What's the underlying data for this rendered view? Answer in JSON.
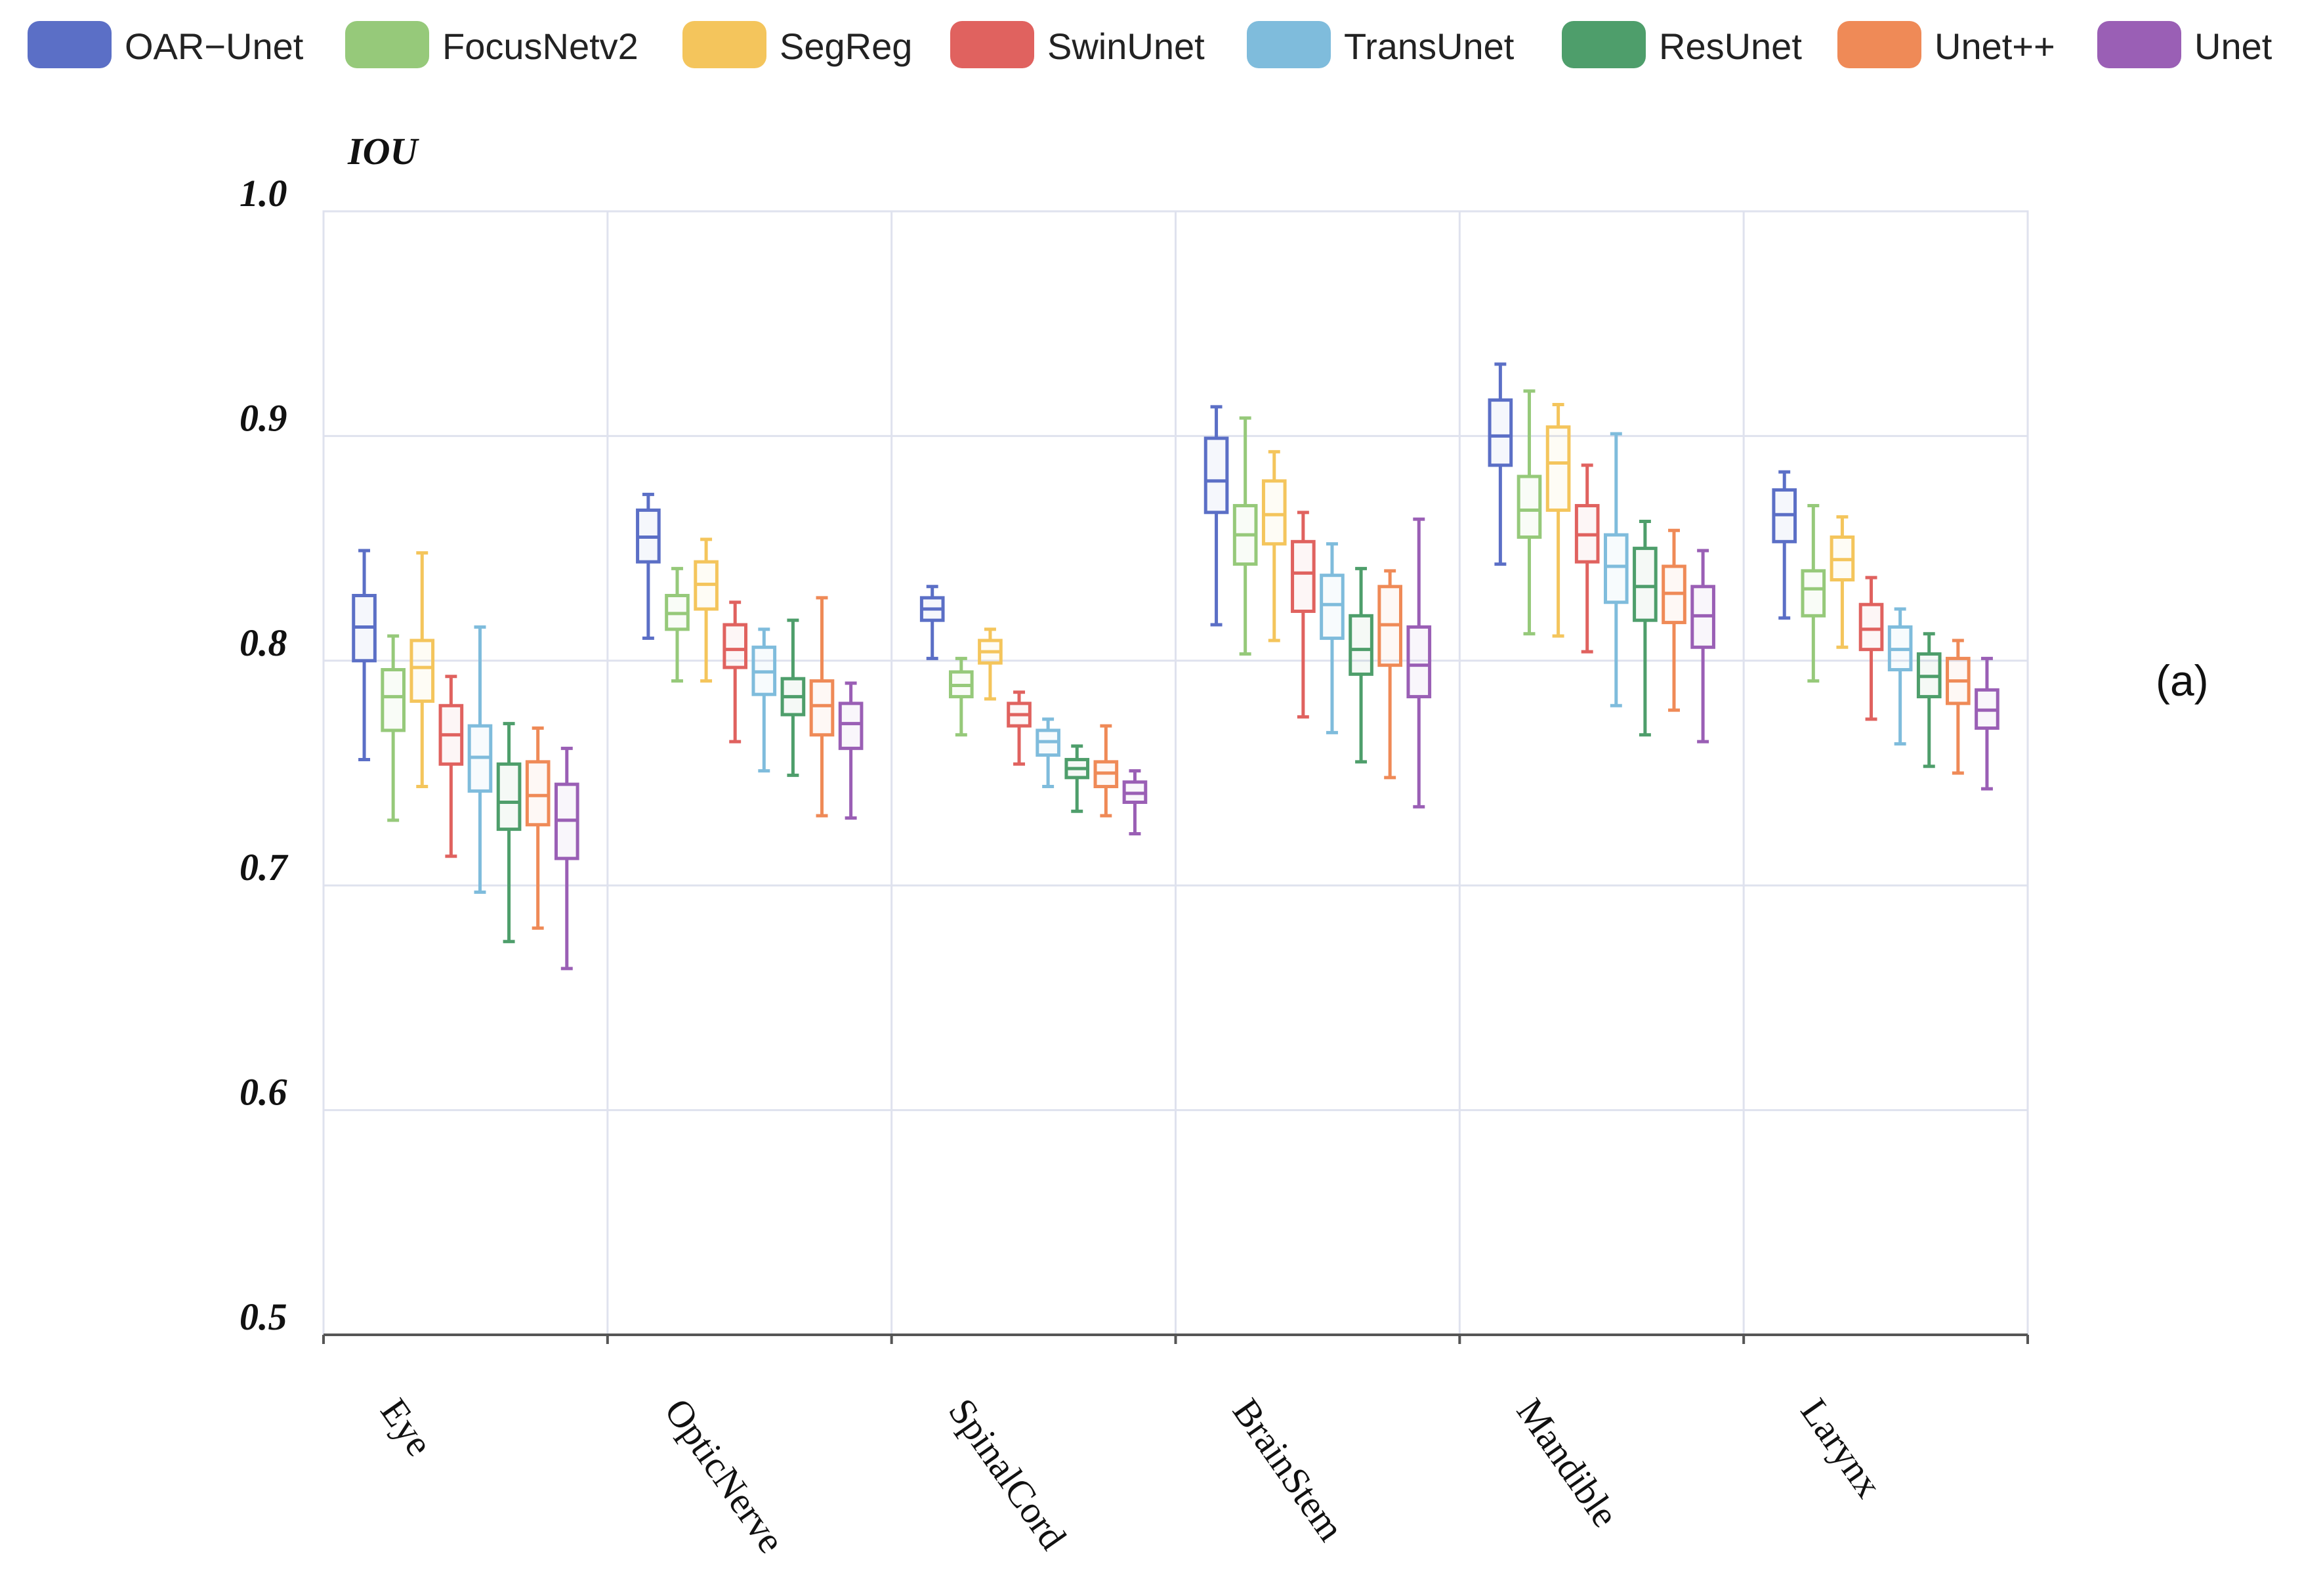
{
  "chart_data": {
    "type": "boxplot",
    "title": "",
    "panel_label": "(a)",
    "ylabel": "IOU",
    "xlabel": "",
    "ylim": [
      0.5,
      1.0
    ],
    "yticks": [
      "0.5",
      "0.6",
      "0.7",
      "0.8",
      "0.9",
      "1.0"
    ],
    "grid": true,
    "legend_position": "top",
    "categories": [
      "Eye",
      "OpticNerve",
      "SpinalCord",
      "BrainStem",
      "Mandible",
      "Larynx"
    ],
    "series": [
      {
        "name": "OAR−Unet",
        "color": "#5b6fc6",
        "values": [
          {
            "min": 0.756,
            "q1": 0.8,
            "median": 0.815,
            "q3": 0.829,
            "max": 0.849
          },
          {
            "min": 0.81,
            "q1": 0.844,
            "median": 0.855,
            "q3": 0.867,
            "max": 0.874
          },
          {
            "min": 0.801,
            "q1": 0.818,
            "median": 0.823,
            "q3": 0.828,
            "max": 0.833
          },
          {
            "min": 0.816,
            "q1": 0.866,
            "median": 0.88,
            "q3": 0.899,
            "max": 0.913
          },
          {
            "min": 0.843,
            "q1": 0.887,
            "median": 0.9,
            "q3": 0.916,
            "max": 0.932
          },
          {
            "min": 0.819,
            "q1": 0.853,
            "median": 0.865,
            "q3": 0.876,
            "max": 0.884
          }
        ]
      },
      {
        "name": "FocusNetv2",
        "color": "#96c97a",
        "values": [
          {
            "min": 0.729,
            "q1": 0.769,
            "median": 0.784,
            "q3": 0.796,
            "max": 0.811
          },
          {
            "min": 0.791,
            "q1": 0.814,
            "median": 0.821,
            "q3": 0.829,
            "max": 0.841
          },
          {
            "min": 0.767,
            "q1": 0.784,
            "median": 0.789,
            "q3": 0.795,
            "max": 0.801
          },
          {
            "min": 0.803,
            "q1": 0.843,
            "median": 0.856,
            "q3": 0.869,
            "max": 0.908
          },
          {
            "min": 0.812,
            "q1": 0.855,
            "median": 0.867,
            "q3": 0.882,
            "max": 0.92
          },
          {
            "min": 0.791,
            "q1": 0.82,
            "median": 0.832,
            "q3": 0.84,
            "max": 0.869
          }
        ]
      },
      {
        "name": "SegReg",
        "color": "#f4c55c",
        "values": [
          {
            "min": 0.744,
            "q1": 0.782,
            "median": 0.797,
            "q3": 0.809,
            "max": 0.848
          },
          {
            "min": 0.791,
            "q1": 0.823,
            "median": 0.834,
            "q3": 0.844,
            "max": 0.854
          },
          {
            "min": 0.783,
            "q1": 0.799,
            "median": 0.804,
            "q3": 0.809,
            "max": 0.814
          },
          {
            "min": 0.809,
            "q1": 0.852,
            "median": 0.865,
            "q3": 0.88,
            "max": 0.893
          },
          {
            "min": 0.811,
            "q1": 0.867,
            "median": 0.888,
            "q3": 0.904,
            "max": 0.914
          },
          {
            "min": 0.806,
            "q1": 0.836,
            "median": 0.845,
            "q3": 0.855,
            "max": 0.864
          }
        ]
      },
      {
        "name": "SwinUnet",
        "color": "#e0625f",
        "values": [
          {
            "min": 0.713,
            "q1": 0.754,
            "median": 0.767,
            "q3": 0.78,
            "max": 0.793
          },
          {
            "min": 0.764,
            "q1": 0.797,
            "median": 0.805,
            "q3": 0.816,
            "max": 0.826
          },
          {
            "min": 0.754,
            "q1": 0.771,
            "median": 0.776,
            "q3": 0.781,
            "max": 0.786
          },
          {
            "min": 0.775,
            "q1": 0.822,
            "median": 0.839,
            "q3": 0.853,
            "max": 0.866
          },
          {
            "min": 0.804,
            "q1": 0.844,
            "median": 0.856,
            "q3": 0.869,
            "max": 0.887
          },
          {
            "min": 0.774,
            "q1": 0.805,
            "median": 0.814,
            "q3": 0.825,
            "max": 0.837
          }
        ]
      },
      {
        "name": "TransUnet",
        "color": "#7fbcdc",
        "values": [
          {
            "min": 0.697,
            "q1": 0.742,
            "median": 0.757,
            "q3": 0.771,
            "max": 0.815
          },
          {
            "min": 0.751,
            "q1": 0.785,
            "median": 0.795,
            "q3": 0.806,
            "max": 0.814
          },
          {
            "min": 0.744,
            "q1": 0.758,
            "median": 0.764,
            "q3": 0.769,
            "max": 0.774
          },
          {
            "min": 0.768,
            "q1": 0.81,
            "median": 0.825,
            "q3": 0.838,
            "max": 0.852
          },
          {
            "min": 0.78,
            "q1": 0.826,
            "median": 0.842,
            "q3": 0.856,
            "max": 0.901
          },
          {
            "min": 0.763,
            "q1": 0.796,
            "median": 0.805,
            "q3": 0.815,
            "max": 0.823
          }
        ]
      },
      {
        "name": "ResUnet",
        "color": "#4e9e6b",
        "values": [
          {
            "min": 0.675,
            "q1": 0.725,
            "median": 0.737,
            "q3": 0.754,
            "max": 0.772
          },
          {
            "min": 0.749,
            "q1": 0.776,
            "median": 0.784,
            "q3": 0.792,
            "max": 0.818
          },
          {
            "min": 0.733,
            "q1": 0.748,
            "median": 0.752,
            "q3": 0.756,
            "max": 0.762
          },
          {
            "min": 0.755,
            "q1": 0.794,
            "median": 0.805,
            "q3": 0.82,
            "max": 0.841
          },
          {
            "min": 0.767,
            "q1": 0.818,
            "median": 0.833,
            "q3": 0.85,
            "max": 0.862
          },
          {
            "min": 0.753,
            "q1": 0.784,
            "median": 0.793,
            "q3": 0.803,
            "max": 0.812
          }
        ]
      },
      {
        "name": "Unet++",
        "color": "#ef8a57",
        "values": [
          {
            "min": 0.681,
            "q1": 0.727,
            "median": 0.74,
            "q3": 0.755,
            "max": 0.77
          },
          {
            "min": 0.731,
            "q1": 0.767,
            "median": 0.78,
            "q3": 0.791,
            "max": 0.828
          },
          {
            "min": 0.731,
            "q1": 0.744,
            "median": 0.75,
            "q3": 0.755,
            "max": 0.771
          },
          {
            "min": 0.748,
            "q1": 0.798,
            "median": 0.816,
            "q3": 0.833,
            "max": 0.84
          },
          {
            "min": 0.778,
            "q1": 0.817,
            "median": 0.83,
            "q3": 0.842,
            "max": 0.858
          },
          {
            "min": 0.75,
            "q1": 0.781,
            "median": 0.791,
            "q3": 0.801,
            "max": 0.809
          }
        ]
      },
      {
        "name": "Unet",
        "color": "#9a5fb5",
        "values": [
          {
            "min": 0.663,
            "q1": 0.712,
            "median": 0.729,
            "q3": 0.745,
            "max": 0.761
          },
          {
            "min": 0.73,
            "q1": 0.761,
            "median": 0.772,
            "q3": 0.781,
            "max": 0.79
          },
          {
            "min": 0.723,
            "q1": 0.737,
            "median": 0.741,
            "q3": 0.746,
            "max": 0.751
          },
          {
            "min": 0.735,
            "q1": 0.784,
            "median": 0.798,
            "q3": 0.815,
            "max": 0.863
          },
          {
            "min": 0.764,
            "q1": 0.806,
            "median": 0.82,
            "q3": 0.833,
            "max": 0.849
          },
          {
            "min": 0.743,
            "q1": 0.77,
            "median": 0.778,
            "q3": 0.787,
            "max": 0.801
          }
        ]
      }
    ]
  }
}
